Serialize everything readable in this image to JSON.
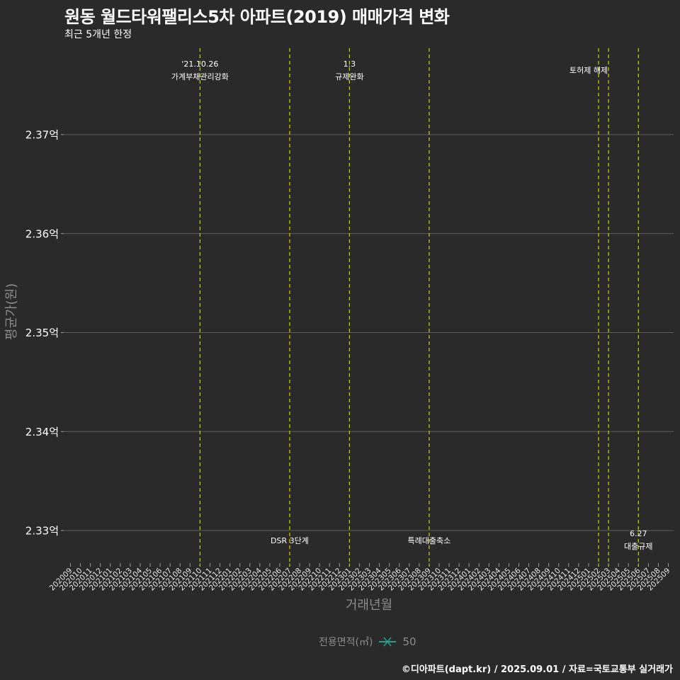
{
  "header": {
    "title": "원동 월드타워팰리스5차 아파트(2019) 매매가격 변화",
    "subtitle": "최근 5개년 한정"
  },
  "legend": {
    "title": "전용면적(㎡)",
    "items": [
      {
        "label": "50",
        "color": "#2a9d8f",
        "symbol": "line-x"
      }
    ]
  },
  "caption": "©디아파트(dapt.kr) / 2025.09.01 / 자료=국토교통부 실거래가",
  "colors": {
    "background": "#2a2a2a",
    "grid": "#5f5f5f",
    "event_line": "#c8d400",
    "series": "#2a9d8f"
  },
  "chart_data": {
    "type": "line",
    "title": "원동 월드타워팰리스5차 아파트(2019) 매매가격 변화",
    "subtitle": "최근 5개년 한정",
    "xlabel": "거래년월",
    "ylabel": "평균가(원)",
    "ylim": [
      2.3265,
      2.3786
    ],
    "yticks": [
      2.33,
      2.34,
      2.35,
      2.36,
      2.37
    ],
    "ytick_labels": [
      "2.33억",
      "2.34억",
      "2.35억",
      "2.36억",
      "2.37억"
    ],
    "x_categories": [
      "202009",
      "202010",
      "202011",
      "202012",
      "202101",
      "202102",
      "202103",
      "202104",
      "202105",
      "202106",
      "202107",
      "202108",
      "202109",
      "202110",
      "202111",
      "202112",
      "202201",
      "202202",
      "202203",
      "202204",
      "202205",
      "202206",
      "202207",
      "202208",
      "202209",
      "202210",
      "202211",
      "202212",
      "202301",
      "202302",
      "202303",
      "202304",
      "202305",
      "202306",
      "202307",
      "202308",
      "202309",
      "202310",
      "202311",
      "202312",
      "202401",
      "202402",
      "202403",
      "202404",
      "202405",
      "202406",
      "202407",
      "202408",
      "202409",
      "202410",
      "202411",
      "202412",
      "202501",
      "202502",
      "202503",
      "202504",
      "202505",
      "202506",
      "202507",
      "202508",
      "202509"
    ],
    "series": [
      {
        "name": "50",
        "values": []
      }
    ],
    "grid": true,
    "legend_position": "bottom",
    "event_lines": [
      {
        "x": "202110",
        "label_top": "'21.10.26",
        "label_bottom": "가계부채관리강화",
        "position": "top"
      },
      {
        "x": "202207",
        "label_top": "",
        "label_bottom": "DSR 3단계",
        "position": "bottom"
      },
      {
        "x": "202301",
        "label_top": "1.3",
        "label_bottom": "규제완화",
        "position": "top"
      },
      {
        "x": "202309",
        "label_top": "",
        "label_bottom": "특례대출축소",
        "position": "bottom"
      },
      {
        "x": "202502",
        "label_top": "",
        "label_bottom": "토허제 해제",
        "position": "top",
        "label_offset": 14
      },
      {
        "x": "202503",
        "label_top": "",
        "label_bottom": "",
        "position": "top"
      },
      {
        "x": "202506",
        "label_top": "6.27",
        "label_bottom": "대출규제",
        "position": "bottom"
      }
    ]
  }
}
